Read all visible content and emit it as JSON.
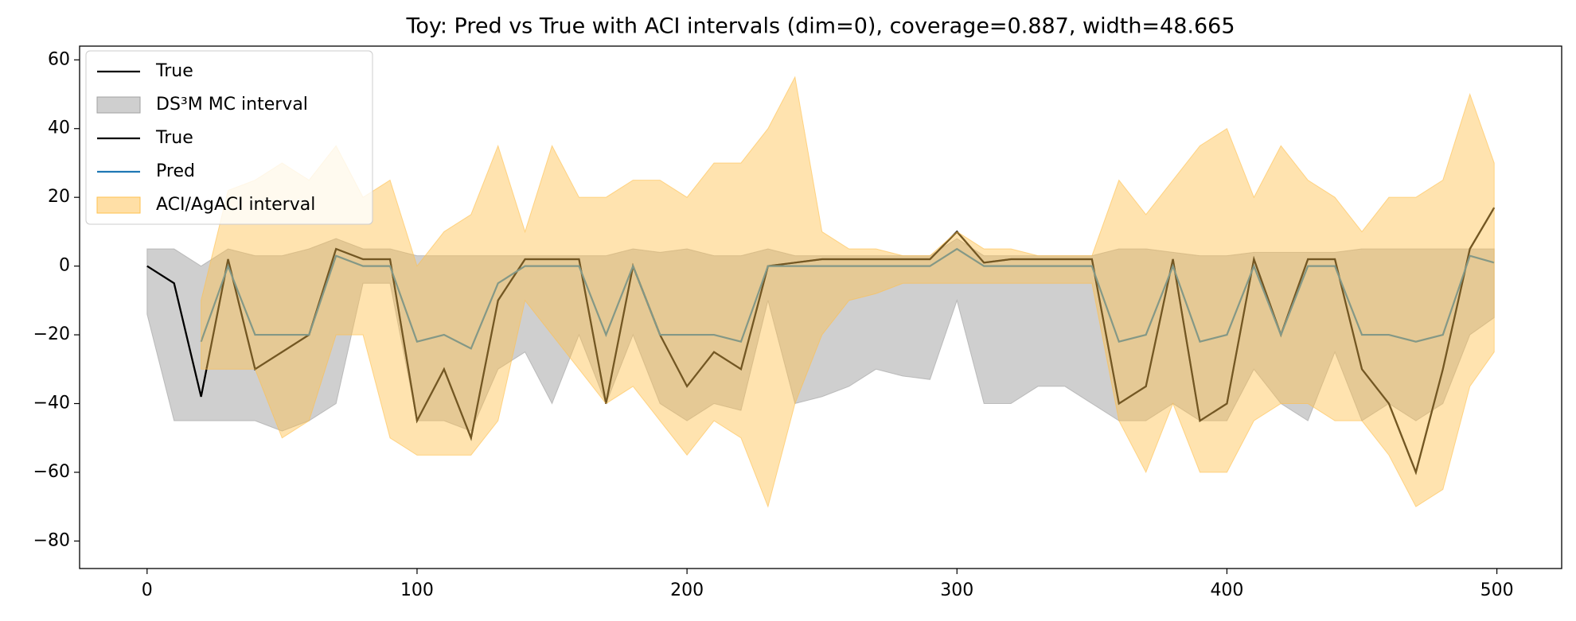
{
  "chart_data": {
    "type": "line",
    "title": "Toy: Pred vs True with ACI intervals (dim=0), coverage=0.887, width=48.665",
    "x": [
      0,
      10,
      20,
      30,
      40,
      50,
      60,
      70,
      80,
      90,
      100,
      110,
      120,
      130,
      140,
      150,
      160,
      170,
      180,
      190,
      200,
      210,
      220,
      230,
      240,
      250,
      260,
      270,
      280,
      290,
      300,
      310,
      320,
      330,
      340,
      350,
      360,
      370,
      380,
      390,
      400,
      410,
      420,
      430,
      440,
      450,
      460,
      470,
      480,
      490,
      499
    ],
    "series": [
      {
        "name": "True",
        "color": "#000000",
        "values": [
          0,
          -5,
          -38,
          2,
          -30,
          -25,
          -20,
          5,
          2,
          2,
          -45,
          -30,
          -50,
          -10,
          2,
          2,
          2,
          -40,
          0,
          -20,
          -35,
          -25,
          -30,
          0,
          1,
          2,
          2,
          2,
          2,
          2,
          10,
          1,
          2,
          2,
          2,
          2,
          -40,
          -35,
          2,
          -45,
          -40,
          2,
          -20,
          2,
          2,
          -30,
          -40,
          -60,
          -30,
          5,
          17
        ]
      },
      {
        "name": "DS³M MC interval",
        "color": "#a0a0a0",
        "band": true,
        "lower": [
          -14,
          -45,
          -45,
          -45,
          -45,
          -48,
          -45,
          -40,
          -5,
          -5,
          -45,
          -45,
          -48,
          -30,
          -25,
          -40,
          -20,
          -40,
          -20,
          -40,
          -45,
          -40,
          -42,
          -10,
          -40,
          -38,
          -35,
          -30,
          -32,
          -33,
          -10,
          -40,
          -40,
          -35,
          -35,
          -40,
          -45,
          -45,
          -40,
          -45,
          -45,
          -30,
          -40,
          -45,
          -25,
          -45,
          -40,
          -45,
          -40,
          -20,
          -15
        ],
        "upper": [
          5,
          5,
          0,
          5,
          3,
          3,
          5,
          8,
          5,
          5,
          3,
          3,
          3,
          3,
          3,
          3,
          3,
          3,
          5,
          4,
          5,
          3,
          3,
          5,
          3,
          3,
          3,
          3,
          3,
          3,
          8,
          3,
          3,
          3,
          3,
          3,
          5,
          5,
          4,
          3,
          3,
          4,
          4,
          4,
          4,
          5,
          5,
          5,
          5,
          5,
          5
        ]
      },
      {
        "name": "True",
        "color": "#000000",
        "values": [
          0,
          -5,
          -38,
          2,
          -30,
          -25,
          -20,
          5,
          2,
          2,
          -45,
          -30,
          -50,
          -10,
          2,
          2,
          2,
          -40,
          0,
          -20,
          -35,
          -25,
          -30,
          0,
          1,
          2,
          2,
          2,
          2,
          2,
          10,
          1,
          2,
          2,
          2,
          2,
          -40,
          -35,
          2,
          -45,
          -40,
          2,
          -20,
          2,
          2,
          -30,
          -40,
          -60,
          -30,
          5,
          17
        ]
      },
      {
        "name": "Pred",
        "color": "#1f77b4",
        "values": [
          null,
          null,
          -22,
          0,
          -20,
          -20,
          -20,
          3,
          0,
          0,
          -22,
          -20,
          -24,
          -5,
          0,
          0,
          0,
          -20,
          0,
          -20,
          -20,
          -20,
          -22,
          0,
          0,
          0,
          0,
          0,
          0,
          0,
          5,
          0,
          0,
          0,
          0,
          0,
          -22,
          -20,
          0,
          -22,
          -20,
          0,
          -20,
          0,
          0,
          -20,
          -20,
          -22,
          -20,
          3,
          1
        ]
      },
      {
        "name": "ACI/AgACI interval",
        "color": "#ffc04d",
        "band": true,
        "lower": [
          null,
          null,
          -30,
          -30,
          -30,
          -50,
          -45,
          -20,
          -20,
          -50,
          -55,
          -55,
          -55,
          -45,
          -10,
          -20,
          -30,
          -40,
          -35,
          -45,
          -55,
          -45,
          -50,
          -70,
          -40,
          -20,
          -10,
          -8,
          -5,
          -5,
          -5,
          -5,
          -5,
          -5,
          -5,
          -5,
          -45,
          -60,
          -40,
          -60,
          -60,
          -45,
          -40,
          -40,
          -45,
          -45,
          -55,
          -70,
          -65,
          -35,
          -25
        ],
        "upper": [
          null,
          null,
          -10,
          22,
          25,
          30,
          25,
          35,
          20,
          25,
          0,
          10,
          15,
          35,
          10,
          35,
          20,
          20,
          25,
          25,
          20,
          30,
          30,
          40,
          55,
          10,
          5,
          5,
          3,
          3,
          10,
          5,
          5,
          3,
          3,
          3,
          25,
          15,
          25,
          35,
          40,
          20,
          35,
          25,
          20,
          10,
          20,
          20,
          25,
          50,
          30
        ]
      }
    ],
    "xlim": [
      -25,
      524
    ],
    "ylim": [
      -88,
      64
    ],
    "xticks": [
      0,
      100,
      200,
      300,
      400,
      500
    ],
    "yticks": [
      {
        "value": -80,
        "label": "−80"
      },
      {
        "value": -60,
        "label": "−60"
      },
      {
        "value": -40,
        "label": "−40"
      },
      {
        "value": -20,
        "label": "−20"
      },
      0,
      20,
      40,
      60
    ],
    "legend": "upper left"
  }
}
